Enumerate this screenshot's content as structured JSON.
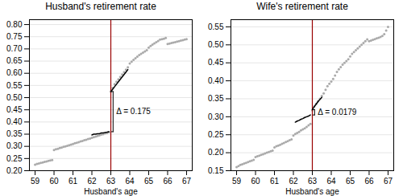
{
  "chart_data": [
    {
      "type": "scatter",
      "title": "Husband's retirement rate",
      "x_label": "Husband's age",
      "color": "#aaaaaa",
      "xlim": [
        58.7,
        67.3
      ],
      "xticks": [
        59,
        60,
        61,
        62,
        63,
        64,
        65,
        66,
        67
      ],
      "ylim": [
        0.2,
        0.82
      ],
      "yticks": [
        {
          "value": 0.2,
          "label": "0.20"
        },
        0.25,
        {
          "value": 0.3,
          "label": "0.30"
        },
        0.35,
        {
          "value": 0.4,
          "label": "0.40"
        },
        0.45,
        {
          "value": 0.5,
          "label": "0.50"
        },
        0.55,
        {
          "value": 0.6,
          "label": "0.60"
        },
        0.65,
        {
          "value": 0.7,
          "label": "0.70"
        },
        0.75,
        {
          "value": 0.8,
          "label": "0.80"
        }
      ],
      "grid": true,
      "x": [
        59.0,
        59.1,
        59.2,
        59.3,
        59.4,
        59.5,
        59.6,
        59.7,
        59.8,
        59.9,
        60.0,
        60.1,
        60.2,
        60.3,
        60.4,
        60.5,
        60.6,
        60.7,
        60.8,
        60.9,
        61.0,
        61.1,
        61.2,
        61.3,
        61.4,
        61.5,
        61.6,
        61.7,
        61.8,
        61.9,
        62.0,
        62.1,
        62.2,
        62.3,
        62.4,
        62.5,
        62.6,
        62.7,
        62.8,
        62.9,
        63.0,
        63.1,
        63.2,
        63.3,
        63.4,
        63.5,
        63.6,
        63.7,
        63.8,
        63.9,
        64.0,
        64.1,
        64.2,
        64.3,
        64.4,
        64.5,
        64.6,
        64.7,
        64.8,
        64.9,
        65.0,
        65.1,
        65.2,
        65.3,
        65.4,
        65.5,
        65.6,
        65.7,
        65.8,
        65.9,
        66.0,
        66.1,
        66.2,
        66.3,
        66.4,
        66.5,
        66.6,
        66.7,
        66.8,
        66.9,
        67.0
      ],
      "values": [
        0.225,
        0.228,
        0.23,
        0.232,
        0.234,
        0.236,
        0.238,
        0.24,
        0.242,
        0.244,
        0.285,
        0.288,
        0.29,
        0.293,
        0.295,
        0.298,
        0.3,
        0.302,
        0.305,
        0.307,
        0.31,
        0.313,
        0.315,
        0.317,
        0.32,
        0.322,
        0.325,
        0.327,
        0.33,
        0.332,
        0.335,
        0.338,
        0.34,
        0.343,
        0.345,
        0.348,
        0.35,
        0.353,
        0.355,
        0.358,
        0.525,
        0.54,
        0.555,
        0.565,
        0.575,
        0.585,
        0.595,
        0.605,
        0.615,
        0.625,
        0.64,
        0.648,
        0.655,
        0.662,
        0.668,
        0.675,
        0.68,
        0.685,
        0.69,
        0.695,
        0.705,
        0.712,
        0.718,
        0.723,
        0.728,
        0.733,
        0.738,
        0.74,
        0.742,
        0.745,
        0.72,
        0.722,
        0.724,
        0.726,
        0.728,
        0.73,
        0.732,
        0.734,
        0.736,
        0.738,
        0.74
      ],
      "lines": [
        {
          "type": "line",
          "color": "#000000",
          "x": [
            62.0,
            62.1,
            62.2,
            62.3,
            62.4,
            62.5,
            62.6,
            62.7,
            62.8,
            62.9
          ],
          "values": [
            0.347,
            0.35,
            0.35,
            0.352,
            0.352,
            0.355,
            0.355,
            0.357,
            0.358,
            0.36
          ]
        },
        {
          "type": "line",
          "color": "#000000",
          "x": [
            63.0,
            63.1,
            63.2,
            63.3,
            63.4,
            63.5,
            63.6,
            63.7,
            63.8,
            63.9
          ],
          "values": [
            0.525,
            0.535,
            0.545,
            0.555,
            0.565,
            0.575,
            0.585,
            0.595,
            0.605,
            0.615
          ]
        }
      ],
      "vline": {
        "x": 63,
        "color": "#990000"
      },
      "annotation": {
        "text": "Δ = 0.175",
        "color": "#000000"
      }
    },
    {
      "type": "scatter",
      "title": "Wife's retirement rate",
      "x_label": "Husband's age",
      "color": "#aaaaaa",
      "xlim": [
        58.7,
        67.3
      ],
      "xticks": [
        59,
        60,
        61,
        62,
        63,
        64,
        65,
        66,
        67
      ],
      "ylim": [
        0.15,
        0.57
      ],
      "yticks": [
        0.15,
        {
          "value": 0.2,
          "label": "0.20"
        },
        0.25,
        {
          "value": 0.3,
          "label": "0.30"
        },
        0.35,
        {
          "value": 0.4,
          "label": "0.40"
        },
        0.45,
        {
          "value": 0.5,
          "label": "0.50"
        },
        0.55
      ],
      "grid": true,
      "x": [
        59.0,
        59.1,
        59.2,
        59.3,
        59.4,
        59.5,
        59.6,
        59.7,
        59.8,
        59.9,
        60.0,
        60.1,
        60.2,
        60.3,
        60.4,
        60.5,
        60.6,
        60.7,
        60.8,
        60.9,
        61.0,
        61.1,
        61.2,
        61.3,
        61.4,
        61.5,
        61.6,
        61.7,
        61.8,
        61.9,
        62.0,
        62.1,
        62.2,
        62.3,
        62.4,
        62.5,
        62.6,
        62.7,
        62.8,
        62.9,
        63.0,
        63.1,
        63.2,
        63.3,
        63.4,
        63.5,
        63.6,
        63.7,
        63.8,
        63.9,
        64.0,
        64.1,
        64.2,
        64.3,
        64.4,
        64.5,
        64.6,
        64.7,
        64.8,
        64.9,
        65.0,
        65.1,
        65.2,
        65.3,
        65.4,
        65.5,
        65.6,
        65.7,
        65.8,
        65.9,
        66.0,
        66.1,
        66.2,
        66.3,
        66.4,
        66.5,
        66.6,
        66.7,
        66.8,
        66.9,
        67.0
      ],
      "values": [
        0.16,
        0.163,
        0.166,
        0.168,
        0.17,
        0.172,
        0.174,
        0.176,
        0.178,
        0.18,
        0.188,
        0.19,
        0.192,
        0.194,
        0.196,
        0.198,
        0.2,
        0.202,
        0.204,
        0.206,
        0.215,
        0.218,
        0.22,
        0.222,
        0.225,
        0.227,
        0.23,
        0.232,
        0.235,
        0.237,
        0.248,
        0.252,
        0.255,
        0.258,
        0.262,
        0.265,
        0.268,
        0.272,
        0.276,
        0.28,
        0.318,
        0.328,
        0.336,
        0.343,
        0.35,
        0.358,
        0.365,
        0.375,
        0.385,
        0.392,
        0.398,
        0.405,
        0.415,
        0.425,
        0.432,
        0.438,
        0.445,
        0.45,
        0.455,
        0.46,
        0.468,
        0.475,
        0.48,
        0.485,
        0.49,
        0.495,
        0.5,
        0.505,
        0.51,
        0.515,
        0.51,
        0.512,
        0.514,
        0.516,
        0.518,
        0.52,
        0.522,
        0.525,
        0.53,
        0.54,
        0.55
      ],
      "lines": [
        {
          "type": "line",
          "color": "#000000",
          "x": [
            62.1,
            62.2,
            62.3,
            62.4,
            62.5,
            62.6,
            62.7,
            62.8,
            62.9
          ],
          "values": [
            0.285,
            0.288,
            0.29,
            0.293,
            0.295,
            0.298,
            0.3,
            0.302,
            0.305
          ]
        },
        {
          "type": "line",
          "color": "#000000",
          "x": [
            63.0,
            63.1,
            63.2,
            63.3,
            63.4,
            63.5
          ],
          "values": [
            0.32,
            0.328,
            0.335,
            0.342,
            0.348,
            0.354
          ]
        }
      ],
      "vline": {
        "x": 63,
        "color": "#990000"
      },
      "annotation": {
        "text": "Δ = 0.0179",
        "color": "#000000"
      }
    }
  ]
}
